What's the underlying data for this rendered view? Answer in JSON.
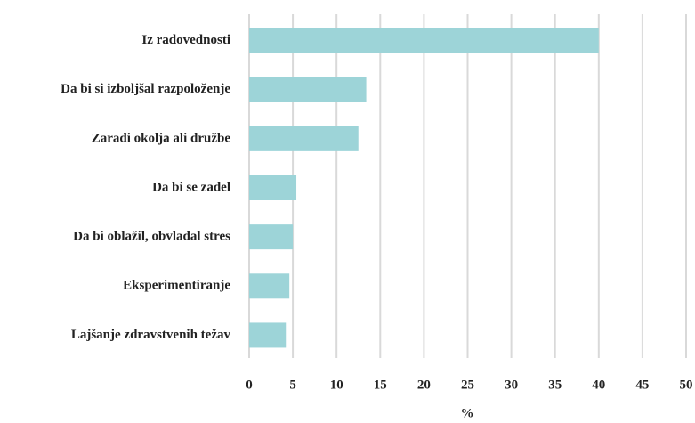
{
  "chart_data": {
    "type": "bar",
    "orientation": "horizontal",
    "x_label": "%",
    "categories": [
      "Iz radovednosti",
      "Da bi si izboljšal razpoloženje",
      "Zaradi okolja ali družbe",
      "Da bi se zadel",
      "Da bi oblažil, obvladal stres",
      "Eksperimentiranje",
      "Lajšanje zdravstvenih težav"
    ],
    "values": [
      40,
      13.4,
      12.5,
      5.4,
      5.0,
      4.6,
      4.2
    ],
    "color": "#9dd4d8",
    "xlim": [
      0,
      50
    ],
    "xticks": [
      0,
      5,
      10,
      15,
      20,
      25,
      30,
      35,
      40,
      45,
      50
    ],
    "grid": true
  }
}
